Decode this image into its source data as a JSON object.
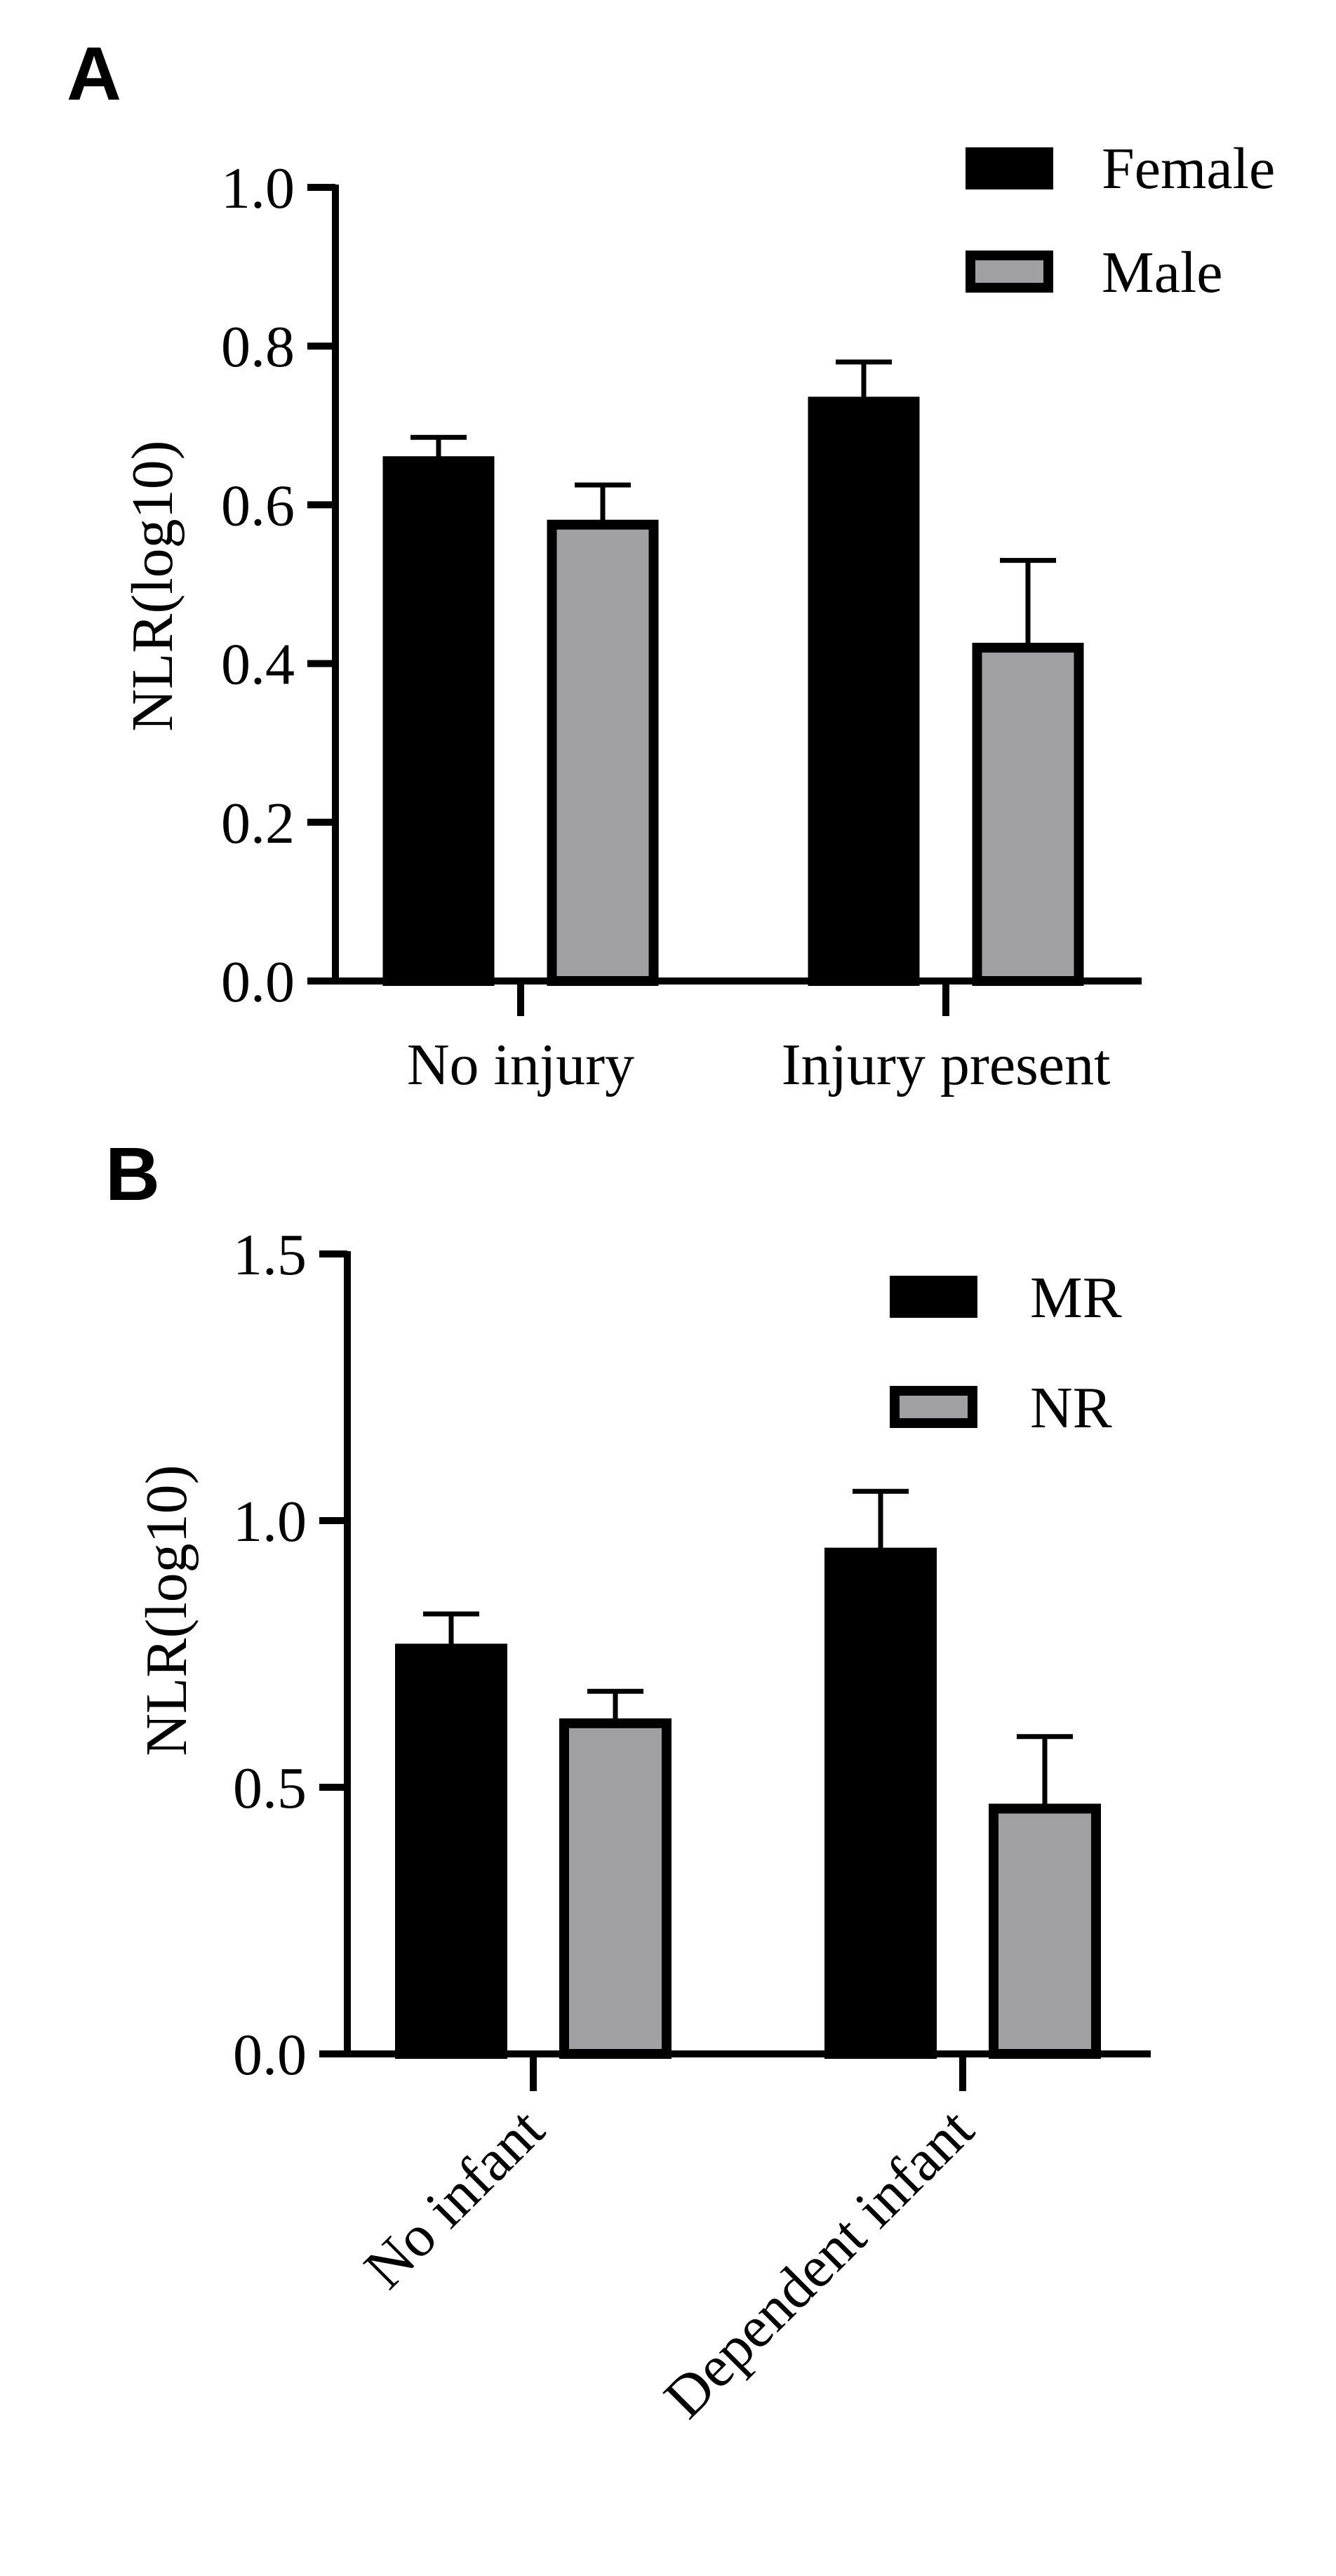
{
  "chart_data": [
    {
      "panel": "A",
      "type": "bar",
      "ylabel": "NLR(log10)",
      "xlabel": "",
      "ylim": [
        0,
        1.0
      ],
      "yticks": [
        "0.0",
        "0.2",
        "0.4",
        "0.6",
        "0.8",
        "1.0"
      ],
      "categories": [
        "No injury",
        "Injury present"
      ],
      "series": [
        {
          "name": "Female",
          "color": "#000000",
          "values": [
            0.655,
            0.73
          ],
          "errors": [
            0.03,
            0.05
          ]
        },
        {
          "name": "Male",
          "color": "#a0a0a3",
          "values": [
            0.575,
            0.42
          ],
          "errors": [
            0.05,
            0.11
          ]
        }
      ],
      "legend_position": "top-right",
      "category_label_rotation": 0
    },
    {
      "panel": "B",
      "type": "bar",
      "ylabel": "NLR(log10)",
      "xlabel": "",
      "ylim": [
        0,
        1.5
      ],
      "yticks": [
        "0.0",
        "0.5",
        "1.0",
        "1.5"
      ],
      "categories": [
        "No infant",
        "Dependent infant"
      ],
      "series": [
        {
          "name": "MR",
          "color": "#000000",
          "values": [
            0.76,
            0.94
          ],
          "errors": [
            0.065,
            0.115
          ]
        },
        {
          "name": "NR",
          "color": "#a0a0a3",
          "values": [
            0.62,
            0.46
          ],
          "errors": [
            0.06,
            0.135
          ]
        }
      ],
      "legend_position": "top-right",
      "category_label_rotation": -45
    }
  ]
}
